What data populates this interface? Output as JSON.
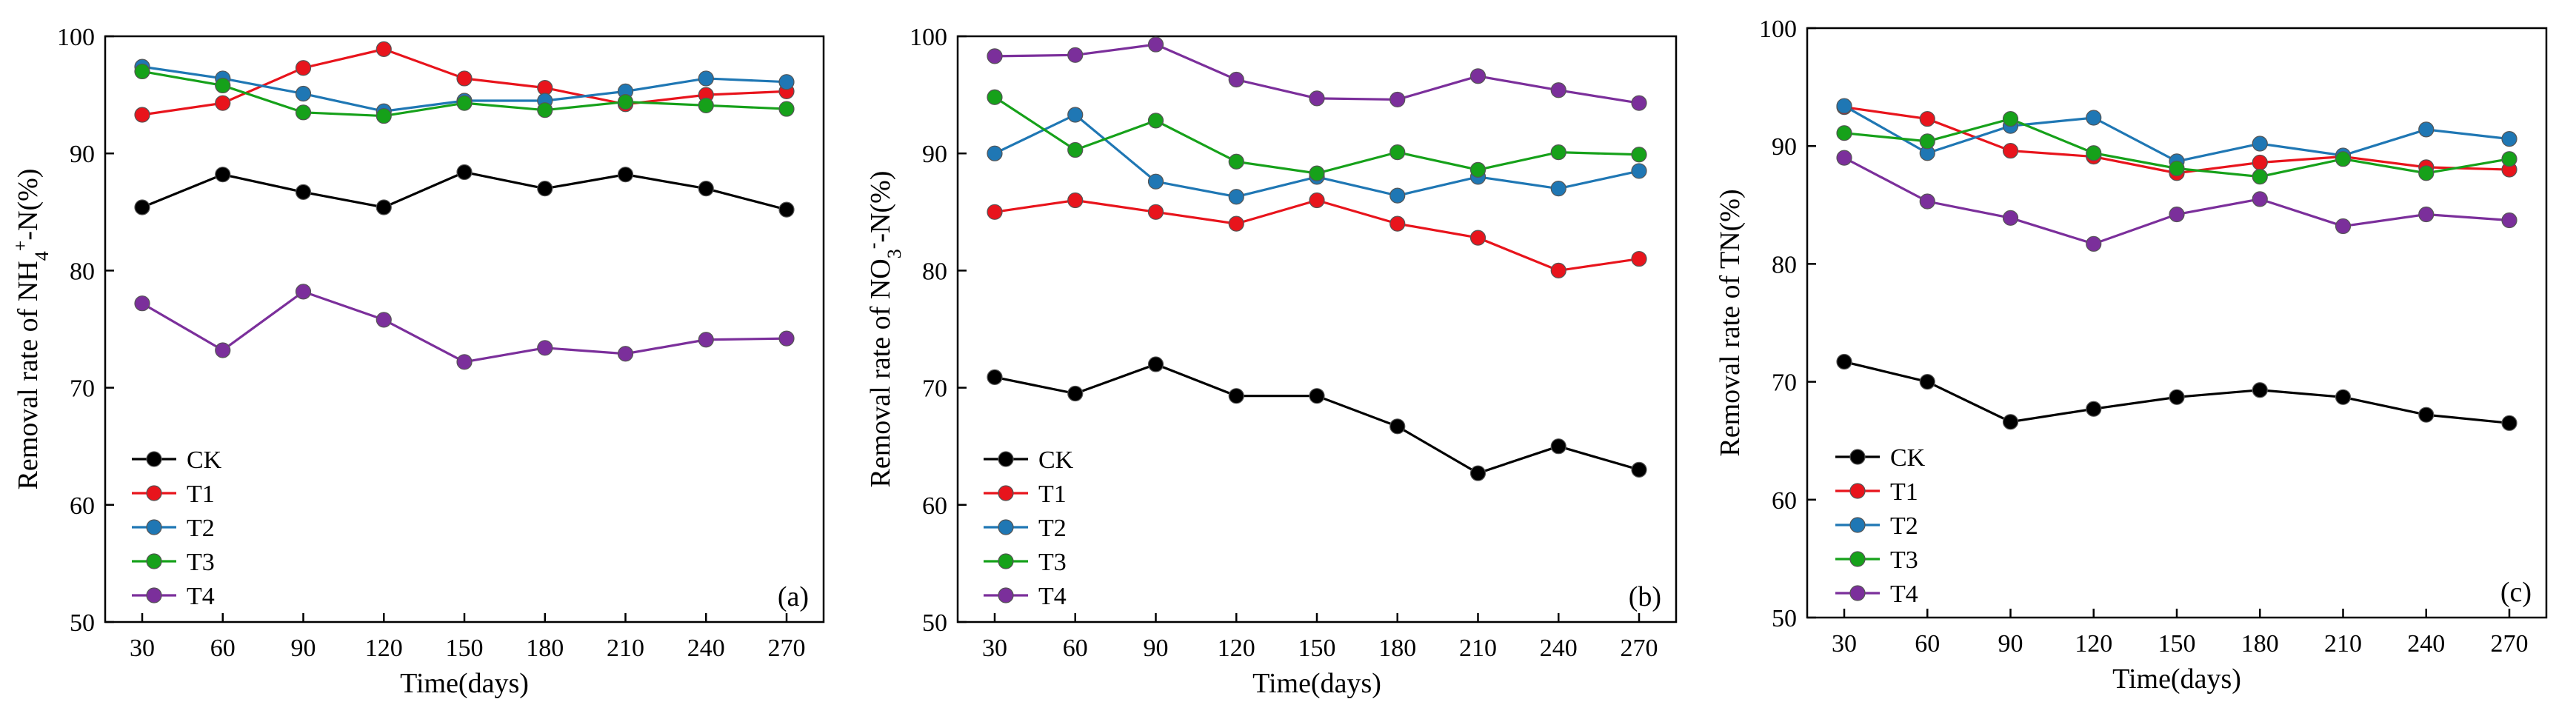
{
  "chart_data": [
    {
      "type": "line",
      "panel_label": "(a)",
      "x": [
        30,
        60,
        90,
        120,
        150,
        180,
        210,
        240,
        270
      ],
      "xticks": [
        "30",
        "60",
        "90",
        "120",
        "150",
        "180",
        "210",
        "240",
        "270"
      ],
      "xlabel": "Time(days)",
      "ylabel_parts": [
        "Removal rate of NH",
        "4",
        "+",
        "-N(%)"
      ],
      "ylim": [
        50,
        100
      ],
      "yticks": [
        "50",
        "60",
        "70",
        "80",
        "90",
        "100"
      ],
      "legend_position": "bottom-left",
      "series": [
        {
          "name": "CK",
          "color": "#000000",
          "values": [
            85.4,
            88.2,
            86.7,
            85.4,
            88.4,
            87.0,
            88.2,
            87.0,
            85.2
          ]
        },
        {
          "name": "T1",
          "color": "#e8141c",
          "values": [
            93.3,
            94.3,
            97.3,
            98.9,
            96.4,
            95.6,
            94.2,
            95.0,
            95.3
          ]
        },
        {
          "name": "T2",
          "color": "#1f77b4",
          "values": [
            97.4,
            96.4,
            95.1,
            93.6,
            94.5,
            94.5,
            95.3,
            96.4,
            96.1
          ]
        },
        {
          "name": "T3",
          "color": "#16a11a",
          "values": [
            97.0,
            95.8,
            93.5,
            93.2,
            94.3,
            93.7,
            94.4,
            94.1,
            93.8
          ]
        },
        {
          "name": "T4",
          "color": "#7b2f9b",
          "values": [
            77.2,
            73.2,
            78.2,
            75.8,
            72.2,
            73.4,
            72.9,
            74.1,
            74.2
          ]
        }
      ]
    },
    {
      "type": "line",
      "panel_label": "(b)",
      "x": [
        30,
        60,
        90,
        120,
        150,
        180,
        210,
        240,
        270
      ],
      "xticks": [
        "30",
        "60",
        "90",
        "120",
        "150",
        "180",
        "210",
        "240",
        "270"
      ],
      "xlabel": "Time(days)",
      "ylabel_parts": [
        "Removal rate of NO",
        "3",
        "-",
        "-N(%)"
      ],
      "ylim": [
        50,
        100
      ],
      "yticks": [
        "50",
        "60",
        "70",
        "80",
        "90",
        "100"
      ],
      "legend_position": "bottom-left",
      "series": [
        {
          "name": "CK",
          "color": "#000000",
          "values": [
            70.9,
            69.5,
            72.0,
            69.3,
            69.3,
            66.7,
            62.7,
            65.0,
            63.0
          ]
        },
        {
          "name": "T1",
          "color": "#e8141c",
          "values": [
            85.0,
            86.0,
            85.0,
            84.0,
            86.0,
            84.0,
            82.8,
            80.0,
            81.0
          ]
        },
        {
          "name": "T2",
          "color": "#1f77b4",
          "values": [
            90.0,
            93.3,
            87.6,
            86.3,
            88.0,
            86.4,
            88.0,
            87.0,
            88.5
          ]
        },
        {
          "name": "T3",
          "color": "#16a11a",
          "values": [
            94.8,
            90.3,
            92.8,
            89.3,
            88.3,
            90.1,
            88.6,
            90.1,
            89.9
          ]
        },
        {
          "name": "T4",
          "color": "#7b2f9b",
          "values": [
            98.3,
            98.4,
            99.3,
            96.3,
            94.7,
            94.6,
            96.6,
            95.4,
            94.3
          ]
        }
      ]
    },
    {
      "type": "line",
      "panel_label": "(c)",
      "x": [
        30,
        60,
        90,
        120,
        150,
        180,
        210,
        240,
        270
      ],
      "xticks": [
        "30",
        "60",
        "90",
        "120",
        "150",
        "180",
        "210",
        "240",
        "270"
      ],
      "xlabel": "Time(days)",
      "ylabel_parts": [
        "Removal rate of TN(%)",
        "",
        "",
        ""
      ],
      "ylim": [
        50,
        100
      ],
      "yticks": [
        "50",
        "60",
        "70",
        "80",
        "90",
        "100"
      ],
      "legend_position": "bottom-left",
      "series": [
        {
          "name": "CK",
          "color": "#000000",
          "values": [
            71.7,
            70.0,
            66.6,
            67.7,
            68.7,
            69.3,
            68.7,
            67.2,
            66.5
          ]
        },
        {
          "name": "T1",
          "color": "#e8141c",
          "values": [
            93.3,
            92.3,
            89.6,
            89.1,
            87.7,
            88.6,
            89.1,
            88.2,
            88.0
          ]
        },
        {
          "name": "T2",
          "color": "#1f77b4",
          "values": [
            93.4,
            89.4,
            91.7,
            92.4,
            88.7,
            90.2,
            89.2,
            91.4,
            90.6
          ]
        },
        {
          "name": "T3",
          "color": "#16a11a",
          "values": [
            91.1,
            90.4,
            92.3,
            89.4,
            88.1,
            87.4,
            88.9,
            87.7,
            88.9
          ]
        },
        {
          "name": "T4",
          "color": "#7b2f9b",
          "values": [
            89.0,
            85.3,
            83.9,
            81.7,
            84.2,
            85.5,
            83.2,
            84.2,
            83.7
          ]
        }
      ]
    }
  ]
}
